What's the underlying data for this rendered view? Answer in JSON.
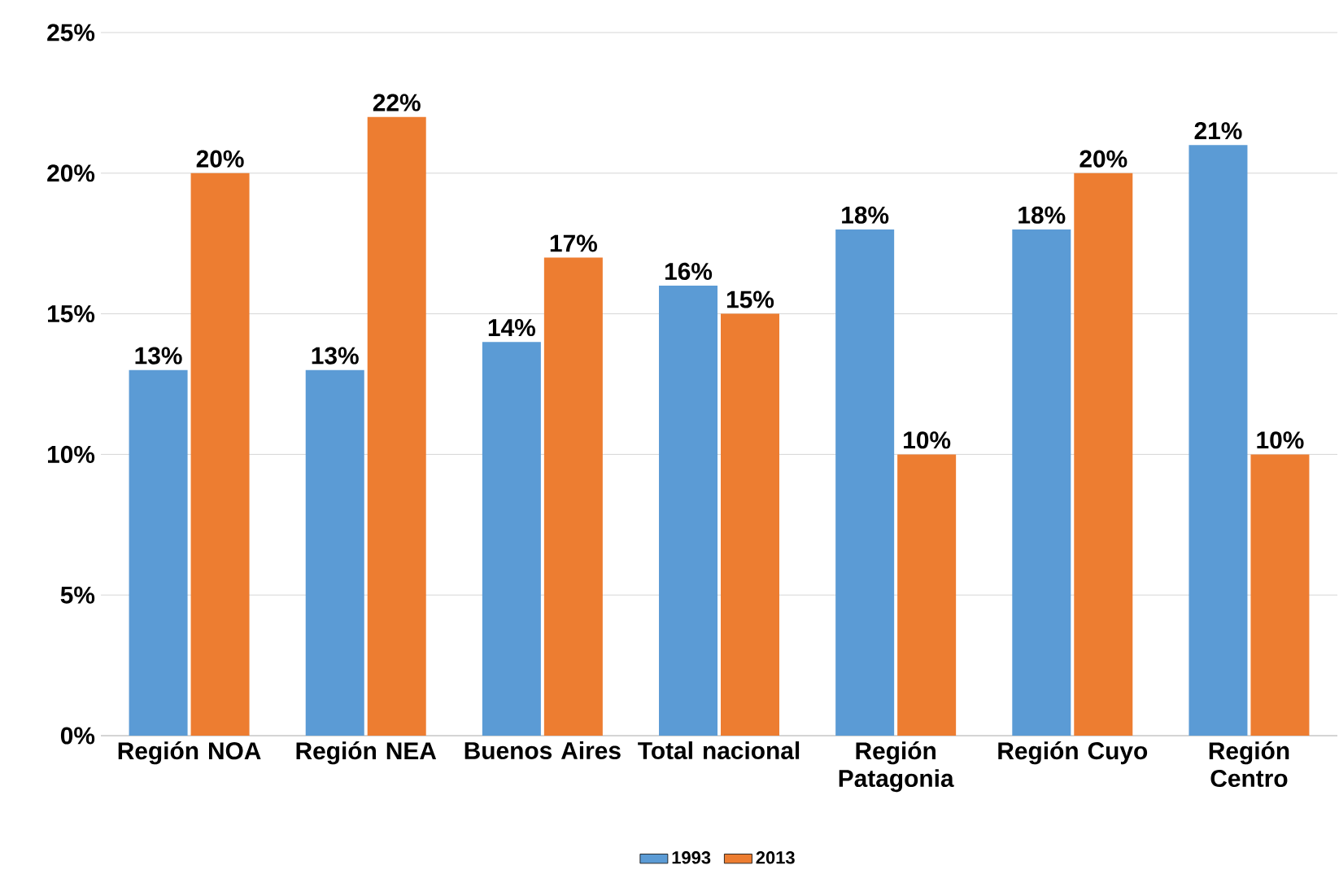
{
  "chart_data": {
    "type": "bar",
    "categories": [
      "Región NOA",
      "Región NEA",
      "Buenos Aires",
      "Total nacional",
      "Región Patagonia",
      "Región Cuyo",
      "Región Centro"
    ],
    "series": [
      {
        "name": "1993",
        "color": "#5b9bd5",
        "values": [
          13,
          13,
          14,
          16,
          18,
          18,
          21
        ],
        "value_labels": [
          "13%",
          "13%",
          "14%",
          "16%",
          "18%",
          "18%",
          "21%"
        ]
      },
      {
        "name": "2013",
        "color": "#ed7d31",
        "values": [
          20,
          22,
          17,
          15,
          10,
          20,
          10
        ],
        "value_labels": [
          "20%",
          "22%",
          "17%",
          "15%",
          "10%",
          "20%",
          "10%"
        ]
      }
    ],
    "ylim": [
      0,
      25
    ],
    "yticks": [
      {
        "value": 0,
        "label": "0%"
      },
      {
        "value": 5,
        "label": "5%"
      },
      {
        "value": 10,
        "label": "10%"
      },
      {
        "value": 15,
        "label": "15%"
      },
      {
        "value": 20,
        "label": "20%"
      },
      {
        "value": 25,
        "label": "25%"
      }
    ],
    "grid": "y",
    "legend": "bottom"
  }
}
